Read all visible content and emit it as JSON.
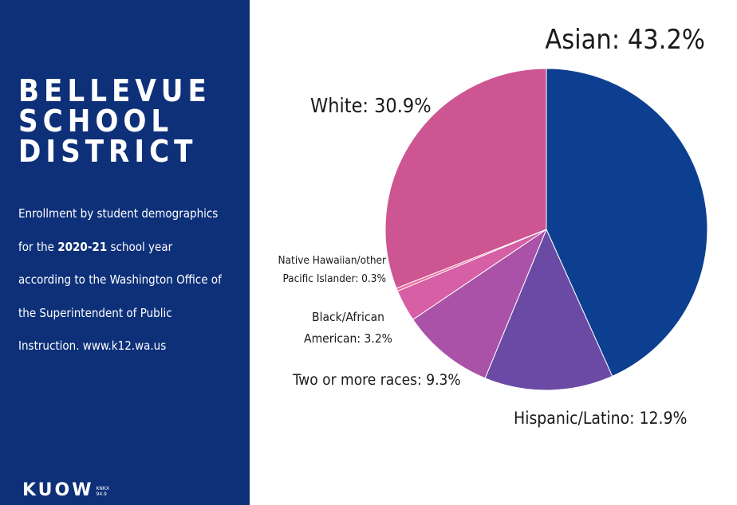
{
  "sidebar": {
    "title_lines": [
      "BELLEVUE",
      "SCHOOL",
      "DISTRICT"
    ],
    "desc_line1": "Enrollment by student demographics",
    "desc_line2_pre": "for the ",
    "desc_line2_bold": "2020-21",
    "desc_line2_post": " school year",
    "desc_line3": "according to the Washington Office of",
    "desc_line4": "the Superintendent of Public",
    "desc_line5": "Instruction. www.k12.wa.us",
    "logo_text": "KUOW",
    "logo_small_1": "KNKX",
    "logo_small_2": "94.9"
  },
  "colors": {
    "panel": "#0d3079"
  },
  "chart_data": {
    "type": "pie",
    "title": "",
    "start_angle_deg": 0,
    "direction": "clockwise",
    "slices": [
      {
        "name": "Asian",
        "value": 43.2,
        "color": "#0c3f8f",
        "label": "Asian: 43.2%"
      },
      {
        "name": "Hispanic/Latino",
        "value": 12.9,
        "color": "#6a4aa5",
        "label": "Hispanic/Latino: 12.9%"
      },
      {
        "name": "Two or more races",
        "value": 9.3,
        "color": "#a952a7",
        "label": "Two or more races: 9.3%"
      },
      {
        "name": "Black/African American",
        "value": 3.2,
        "color": "#d65fa6",
        "label_lines": [
          "Black/African",
          "American: 3.2%"
        ]
      },
      {
        "name": "Native Hawaiian/other Pacific Islander",
        "value": 0.3,
        "color": "#ee6a9c",
        "label_lines": [
          "Native Hawaiian/other",
          "Pacific Islander: 0.3%"
        ]
      },
      {
        "name": "White",
        "value": 30.9,
        "color": "#cc5592",
        "label": "White: 30.9%"
      }
    ]
  }
}
